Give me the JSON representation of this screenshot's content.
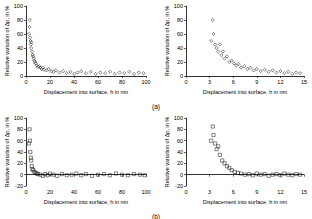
{
  "chart_data": [
    {
      "type": "scatter",
      "annotation": "(a)",
      "x_label": "Displacement into surface, h in nm",
      "y_label": "Relative variation of Δp, in %",
      "marker": "diamond",
      "color": "#000000",
      "grid": false,
      "x": [
        2.5,
        3,
        3.2,
        3.5,
        3.8,
        4,
        4.3,
        4.6,
        5,
        5.5,
        6,
        6.5,
        7,
        7.5,
        8,
        9,
        10,
        11,
        12,
        13,
        14,
        15,
        17,
        19,
        21,
        23,
        25,
        28,
        31,
        34,
        37,
        40,
        43,
        46,
        50,
        54,
        58,
        62,
        66,
        70,
        74,
        78,
        82,
        86,
        90,
        94,
        98
      ],
      "values": [
        60,
        70,
        80,
        55,
        50,
        45,
        40,
        48,
        35,
        30,
        28,
        25,
        22,
        20,
        18,
        15,
        13,
        14,
        12,
        10,
        12,
        9,
        8,
        10,
        7,
        6,
        8,
        5,
        7,
        4,
        6,
        3,
        5,
        7,
        4,
        6,
        3,
        5,
        4,
        6,
        3,
        5,
        4,
        6,
        3,
        5,
        4
      ],
      "xlim": [
        0,
        100
      ],
      "xticks": [
        0,
        20,
        40,
        60,
        80,
        100
      ],
      "ylim": [
        0,
        100
      ],
      "yticks": [
        0,
        20,
        40,
        60,
        80,
        100
      ]
    },
    {
      "type": "scatter",
      "x_label": "Displacement into surface, h in nm",
      "y_label": "Relative variation of Δp, in %",
      "marker": "diamond",
      "color": "#000000",
      "grid": false,
      "x": [
        3.2,
        3.4,
        3.5,
        3.7,
        3.9,
        4.1,
        4.3,
        4.5,
        4.7,
        4.9,
        5.2,
        5.5,
        5.8,
        6.1,
        6.4,
        6.7,
        7,
        7.4,
        7.8,
        8.2,
        8.6,
        9,
        9.5,
        10,
        10.5,
        11,
        11.5,
        12,
        12.5,
        13,
        13.5,
        14,
        14.5
      ],
      "values": [
        50,
        80,
        60,
        45,
        40,
        35,
        45,
        30,
        35,
        25,
        28,
        20,
        22,
        18,
        15,
        17,
        12,
        14,
        10,
        12,
        8,
        10,
        7,
        9,
        6,
        8,
        5,
        7,
        4,
        6,
        3,
        5,
        4
      ],
      "xlim": [
        0,
        15
      ],
      "xticks": [
        0,
        3,
        6,
        9,
        12,
        15
      ],
      "ylim": [
        0,
        100
      ],
      "yticks": [
        0,
        20,
        40,
        60,
        80,
        100
      ]
    },
    {
      "type": "scatter",
      "annotation": "(b)",
      "x_label": "Displacement into surface, h in nm",
      "y_label": "Relative variation of Δp, in %",
      "marker": "square",
      "color": "#000000",
      "grid": false,
      "x": [
        2.5,
        3,
        3.3,
        3.6,
        4,
        4.4,
        4.8,
        5.3,
        6,
        7,
        8,
        9,
        10,
        12,
        14,
        16,
        18,
        20,
        23,
        26,
        30,
        34,
        38,
        42,
        46,
        50,
        55,
        60,
        65,
        70,
        75,
        80,
        85,
        90,
        95,
        99
      ],
      "values": [
        55,
        80,
        60,
        40,
        30,
        25,
        15,
        10,
        8,
        5,
        3,
        2,
        1,
        0,
        -2,
        1,
        -1,
        2,
        0,
        -2,
        1,
        -1,
        0,
        2,
        -1,
        1,
        -2,
        0,
        1,
        -1,
        2,
        0,
        -1,
        1,
        0,
        -1
      ],
      "xlim": [
        0,
        100
      ],
      "xticks": [
        0,
        20,
        40,
        60,
        80,
        100
      ],
      "ylim": [
        -20,
        100
      ],
      "yticks": [
        -20,
        0,
        20,
        40,
        60,
        80,
        100
      ]
    },
    {
      "type": "scatter",
      "x_label": "Displacement into surface, h in nm",
      "y_label": "Relative variation of Δp, in %",
      "marker": "square",
      "color": "#000000",
      "grid": false,
      "x": [
        3.2,
        3.4,
        3.5,
        3.7,
        3.9,
        4.1,
        4.3,
        4.6,
        4.9,
        5.2,
        5.5,
        5.8,
        6.2,
        6.6,
        7,
        7.5,
        8,
        8.5,
        9,
        9.5,
        10,
        10.5,
        11,
        11.5,
        12,
        12.5,
        13,
        13.5,
        14,
        14.5
      ],
      "values": [
        60,
        85,
        70,
        55,
        45,
        50,
        35,
        25,
        20,
        15,
        12,
        8,
        5,
        3,
        2,
        0,
        1,
        -1,
        2,
        0,
        1,
        -2,
        0,
        1,
        -1,
        2,
        0,
        -1,
        1,
        0
      ],
      "xlim": [
        0,
        15
      ],
      "xticks": [
        0,
        3,
        6,
        9,
        12,
        15
      ],
      "ylim": [
        -20,
        100
      ],
      "yticks": [
        -20,
        0,
        20,
        40,
        60,
        80,
        100
      ]
    }
  ]
}
